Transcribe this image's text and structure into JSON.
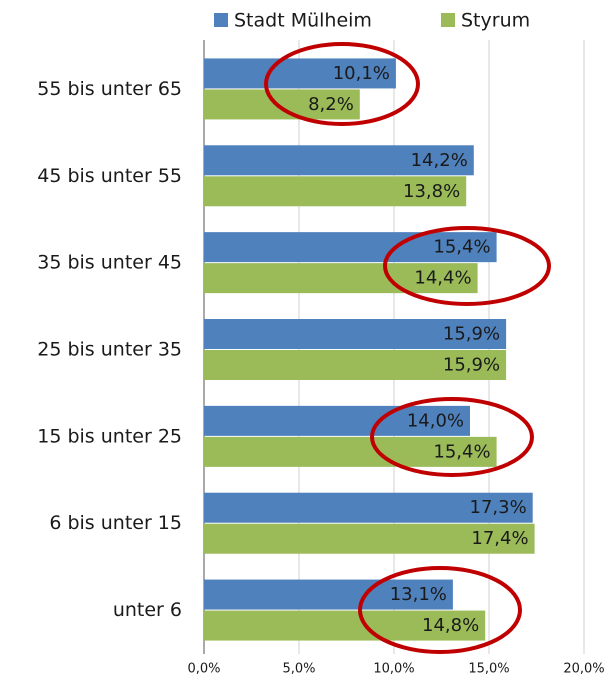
{
  "chart_data": {
    "type": "hbar",
    "categories": [
      "55 bis unter 65",
      "45 bis unter 55",
      "35 bis unter 45",
      "25 bis unter 35",
      "15 bis unter 25",
      "6 bis unter 15",
      "unter 6"
    ],
    "series": [
      {
        "name": "Stadt Mülheim",
        "color": "#4f81bd",
        "values": [
          10.1,
          14.2,
          15.4,
          15.9,
          14.0,
          17.3,
          13.1
        ],
        "value_labels": [
          "10,1%",
          "14,2%",
          "15,4%",
          "15,9%",
          "14,0%",
          "17,3%",
          "13,1%"
        ]
      },
      {
        "name": "Styrum",
        "color": "#9bbb59",
        "values": [
          8.2,
          13.8,
          14.4,
          15.9,
          15.4,
          17.4,
          14.8
        ],
        "value_labels": [
          "8,2%",
          "13,8%",
          "14,4%",
          "15,9%",
          "15,4%",
          "17,4%",
          "14,8%"
        ]
      }
    ],
    "xlim": [
      0,
      20
    ],
    "xticks": [
      {
        "value": 0,
        "label": "0,0%"
      },
      {
        "value": 5,
        "label": "5,0%"
      },
      {
        "value": 10,
        "label": "10,0%"
      },
      {
        "value": 15,
        "label": "15,0%"
      },
      {
        "value": 20,
        "label": "20,0%"
      }
    ],
    "grid": true,
    "legend": "top"
  }
}
